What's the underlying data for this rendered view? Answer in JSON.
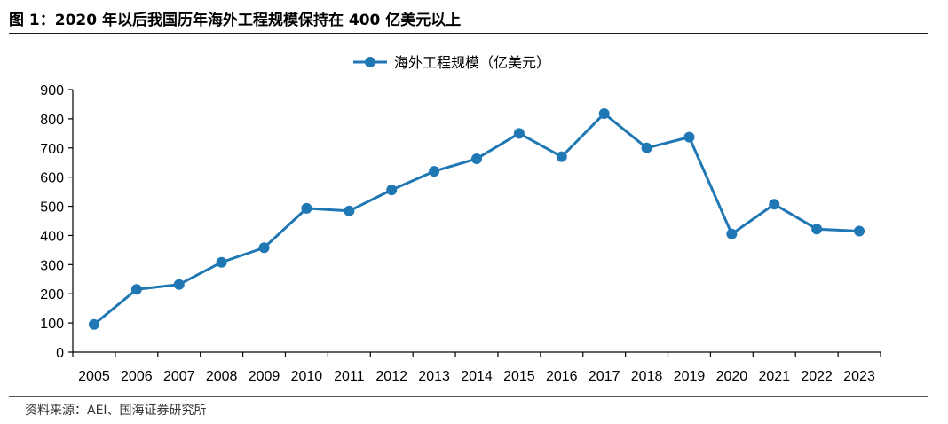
{
  "figure": {
    "title": "图 1：2020 年以后我国历年海外工程规模保持在 400 亿美元以上",
    "source": "资料来源：AEI、国海证券研究所"
  },
  "colors": {
    "series": "#1F77B4",
    "axis": "#000000"
  },
  "chart_data": {
    "type": "line",
    "title": "",
    "xlabel": "",
    "ylabel": "",
    "categories": [
      "2005",
      "2006",
      "2007",
      "2008",
      "2009",
      "2010",
      "2011",
      "2012",
      "2013",
      "2014",
      "2015",
      "2016",
      "2017",
      "2018",
      "2019",
      "2020",
      "2021",
      "2022",
      "2023"
    ],
    "series": [
      {
        "name": "海外工程规模（亿美元）",
        "values": [
          95,
          215,
          232,
          308,
          358,
          493,
          484,
          556,
          620,
          663,
          750,
          670,
          818,
          700,
          737,
          405,
          507,
          422,
          415
        ]
      }
    ],
    "yticks": [
      0,
      100,
      200,
      300,
      400,
      500,
      600,
      700,
      800,
      900
    ],
    "ylim": [
      0,
      900
    ],
    "grid": false,
    "legend": "top-center"
  }
}
